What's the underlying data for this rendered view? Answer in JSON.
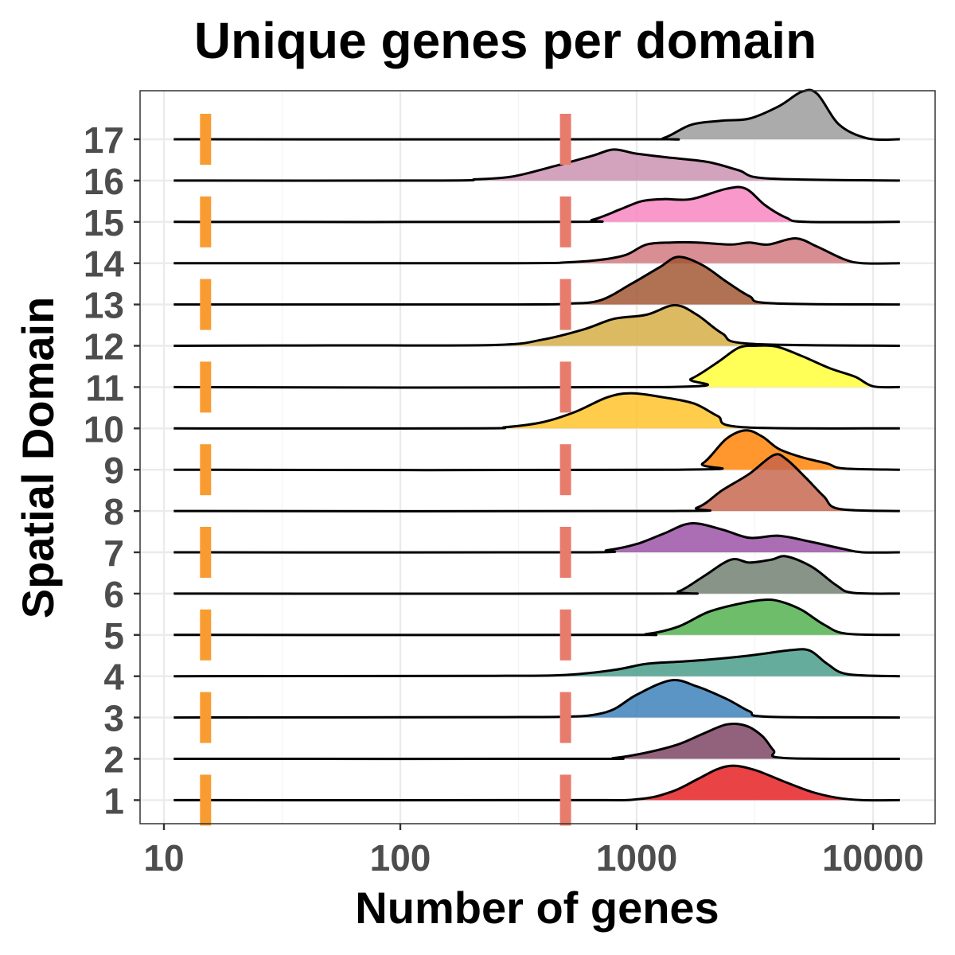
{
  "chart_data": {
    "type": "ridgeline",
    "title": "Unique genes per domain",
    "xlabel": "Number of genes",
    "ylabel": "Spatial Domain",
    "x_scale": "log10",
    "xlim": [
      7,
      16000
    ],
    "x_ticks": [
      10,
      100,
      1000,
      10000
    ],
    "x_tick_labels": [
      "10",
      "100",
      "1000",
      "10000"
    ],
    "grid": true,
    "thresholds": [
      {
        "value": 15,
        "color": "#f89c32",
        "dash": "alternate"
      },
      {
        "value": 500,
        "color": "#e87c6c",
        "dash": "alternate"
      }
    ],
    "series": [
      {
        "label": "1",
        "color": "#e41a1c",
        "density": [
          [
            11,
            0
          ],
          [
            500,
            0
          ],
          [
            1000,
            0.02
          ],
          [
            1400,
            0.2
          ],
          [
            1800,
            0.5
          ],
          [
            2200,
            0.75
          ],
          [
            2600,
            0.83
          ],
          [
            3200,
            0.72
          ],
          [
            4200,
            0.45
          ],
          [
            5500,
            0.2
          ],
          [
            7000,
            0.06
          ],
          [
            9000,
            0
          ],
          [
            13000,
            0
          ]
        ]
      },
      {
        "label": "2",
        "color": "#7a3f5f",
        "density": [
          [
            11,
            0
          ],
          [
            600,
            0
          ],
          [
            800,
            0.02
          ],
          [
            1100,
            0.15
          ],
          [
            1500,
            0.35
          ],
          [
            1900,
            0.6
          ],
          [
            2400,
            0.83
          ],
          [
            2900,
            0.8
          ],
          [
            3400,
            0.55
          ],
          [
            3800,
            0.2
          ],
          [
            4200,
            0.02
          ],
          [
            13000,
            0
          ]
        ]
      },
      {
        "label": "3",
        "color": "#377eb8",
        "density": [
          [
            11,
            0
          ],
          [
            260,
            0.01
          ],
          [
            500,
            0.02
          ],
          [
            650,
            0.06
          ],
          [
            800,
            0.2
          ],
          [
            1000,
            0.55
          ],
          [
            1400,
            0.9
          ],
          [
            1800,
            0.75
          ],
          [
            2400,
            0.45
          ],
          [
            3000,
            0.15
          ],
          [
            3600,
            0.02
          ],
          [
            13000,
            0
          ]
        ]
      },
      {
        "label": "4",
        "color": "#449a87",
        "density": [
          [
            11,
            0
          ],
          [
            250,
            0.01
          ],
          [
            500,
            0.03
          ],
          [
            800,
            0.15
          ],
          [
            1100,
            0.3
          ],
          [
            1500,
            0.35
          ],
          [
            2000,
            0.4
          ],
          [
            3000,
            0.5
          ],
          [
            4500,
            0.63
          ],
          [
            5400,
            0.62
          ],
          [
            6400,
            0.3
          ],
          [
            7800,
            0.05
          ],
          [
            13000,
            0
          ]
        ]
      },
      {
        "label": "5",
        "color": "#4daf4a",
        "density": [
          [
            11,
            0
          ],
          [
            800,
            0
          ],
          [
            1100,
            0.02
          ],
          [
            1500,
            0.2
          ],
          [
            2000,
            0.55
          ],
          [
            2700,
            0.75
          ],
          [
            3500,
            0.85
          ],
          [
            4100,
            0.8
          ],
          [
            5000,
            0.6
          ],
          [
            6200,
            0.25
          ],
          [
            7700,
            0.03
          ],
          [
            13000,
            0
          ]
        ]
      },
      {
        "label": "6",
        "color": "#6d7d6d",
        "density": [
          [
            11,
            0
          ],
          [
            1200,
            0
          ],
          [
            1500,
            0.05
          ],
          [
            1900,
            0.4
          ],
          [
            2500,
            0.82
          ],
          [
            3000,
            0.75
          ],
          [
            3700,
            0.82
          ],
          [
            4300,
            0.9
          ],
          [
            5500,
            0.65
          ],
          [
            7000,
            0.2
          ],
          [
            8200,
            0.02
          ],
          [
            13000,
            0
          ]
        ]
      },
      {
        "label": "7",
        "color": "#984ea3",
        "density": [
          [
            11,
            0
          ],
          [
            550,
            0
          ],
          [
            750,
            0.05
          ],
          [
            1000,
            0.2
          ],
          [
            1300,
            0.45
          ],
          [
            1700,
            0.7
          ],
          [
            2300,
            0.55
          ],
          [
            3000,
            0.35
          ],
          [
            4000,
            0.4
          ],
          [
            5500,
            0.25
          ],
          [
            7500,
            0.08
          ],
          [
            9000,
            0
          ],
          [
            13000,
            0
          ]
        ]
      },
      {
        "label": "8",
        "color": "#c6634a",
        "density": [
          [
            11,
            0
          ],
          [
            1300,
            0
          ],
          [
            1800,
            0.08
          ],
          [
            2300,
            0.5
          ],
          [
            3000,
            0.9
          ],
          [
            3800,
            1.35
          ],
          [
            4300,
            1.25
          ],
          [
            5200,
            0.8
          ],
          [
            6200,
            0.35
          ],
          [
            7200,
            0.05
          ],
          [
            13000,
            0
          ]
        ]
      },
      {
        "label": "9",
        "color": "#ff7f00",
        "density": [
          [
            11,
            0
          ],
          [
            1500,
            0
          ],
          [
            1900,
            0.15
          ],
          [
            2400,
            0.75
          ],
          [
            2900,
            0.95
          ],
          [
            3400,
            0.8
          ],
          [
            4000,
            0.5
          ],
          [
            5000,
            0.3
          ],
          [
            6400,
            0.15
          ],
          [
            7500,
            0.03
          ],
          [
            13000,
            0
          ]
        ]
      },
      {
        "label": "10",
        "color": "#ffc125",
        "density": [
          [
            11,
            0
          ],
          [
            200,
            0
          ],
          [
            280,
            0.03
          ],
          [
            400,
            0.15
          ],
          [
            550,
            0.4
          ],
          [
            750,
            0.75
          ],
          [
            950,
            0.85
          ],
          [
            1300,
            0.75
          ],
          [
            1750,
            0.6
          ],
          [
            2200,
            0.3
          ],
          [
            2800,
            0.03
          ],
          [
            13000,
            0
          ]
        ]
      },
      {
        "label": "11",
        "color": "#ffff33",
        "density": [
          [
            11,
            0
          ],
          [
            1300,
            0
          ],
          [
            1700,
            0.2
          ],
          [
            2200,
            0.6
          ],
          [
            2700,
            0.95
          ],
          [
            3200,
            1.0
          ],
          [
            3900,
            0.98
          ],
          [
            5000,
            0.75
          ],
          [
            6600,
            0.45
          ],
          [
            8400,
            0.25
          ],
          [
            10000,
            0.02
          ],
          [
            13000,
            0
          ]
        ]
      },
      {
        "label": "12",
        "color": "#d4ab3f",
        "density": [
          [
            11,
            0
          ],
          [
            50,
            0.01
          ],
          [
            250,
            0.02
          ],
          [
            400,
            0.15
          ],
          [
            600,
            0.4
          ],
          [
            800,
            0.65
          ],
          [
            1100,
            0.75
          ],
          [
            1450,
            0.98
          ],
          [
            1800,
            0.75
          ],
          [
            2300,
            0.3
          ],
          [
            3000,
            0.05
          ],
          [
            13000,
            0
          ]
        ]
      },
      {
        "label": "13",
        "color": "#a0522d",
        "density": [
          [
            11,
            0
          ],
          [
            300,
            0
          ],
          [
            500,
            0.02
          ],
          [
            700,
            0.1
          ],
          [
            950,
            0.5
          ],
          [
            1250,
            0.9
          ],
          [
            1500,
            1.15
          ],
          [
            1900,
            0.95
          ],
          [
            2400,
            0.55
          ],
          [
            3000,
            0.2
          ],
          [
            3700,
            0.03
          ],
          [
            13000,
            0
          ]
        ]
      },
      {
        "label": "14",
        "color": "#d1757c",
        "density": [
          [
            11,
            0
          ],
          [
            300,
            0
          ],
          [
            500,
            0.02
          ],
          [
            700,
            0.08
          ],
          [
            900,
            0.2
          ],
          [
            1100,
            0.45
          ],
          [
            1400,
            0.5
          ],
          [
            1800,
            0.5
          ],
          [
            2500,
            0.45
          ],
          [
            3000,
            0.5
          ],
          [
            3600,
            0.45
          ],
          [
            4700,
            0.6
          ],
          [
            5800,
            0.4
          ],
          [
            7500,
            0.1
          ],
          [
            9000,
            0
          ],
          [
            13000,
            0
          ]
        ]
      },
      {
        "label": "15",
        "color": "#f781bf",
        "density": [
          [
            11,
            0
          ],
          [
            500,
            0
          ],
          [
            650,
            0.05
          ],
          [
            850,
            0.3
          ],
          [
            1050,
            0.5
          ],
          [
            1300,
            0.55
          ],
          [
            1700,
            0.55
          ],
          [
            2400,
            0.8
          ],
          [
            2900,
            0.8
          ],
          [
            3500,
            0.4
          ],
          [
            4300,
            0.1
          ],
          [
            5200,
            0
          ],
          [
            13000,
            0
          ]
        ]
      },
      {
        "label": "16",
        "color": "#c98daf",
        "density": [
          [
            11,
            0
          ],
          [
            150,
            0
          ],
          [
            210,
            0.03
          ],
          [
            300,
            0.1
          ],
          [
            450,
            0.35
          ],
          [
            650,
            0.6
          ],
          [
            800,
            0.75
          ],
          [
            1000,
            0.65
          ],
          [
            1400,
            0.55
          ],
          [
            2000,
            0.45
          ],
          [
            2700,
            0.25
          ],
          [
            3600,
            0.05
          ],
          [
            13000,
            0
          ]
        ]
      },
      {
        "label": "17",
        "color": "#999999",
        "density": [
          [
            11,
            0
          ],
          [
            1000,
            0
          ],
          [
            1300,
            0.03
          ],
          [
            1700,
            0.35
          ],
          [
            2300,
            0.45
          ],
          [
            3000,
            0.5
          ],
          [
            4000,
            0.8
          ],
          [
            5000,
            1.15
          ],
          [
            5800,
            1.1
          ],
          [
            7200,
            0.35
          ],
          [
            9500,
            0.02
          ],
          [
            13000,
            0
          ]
        ]
      }
    ]
  }
}
